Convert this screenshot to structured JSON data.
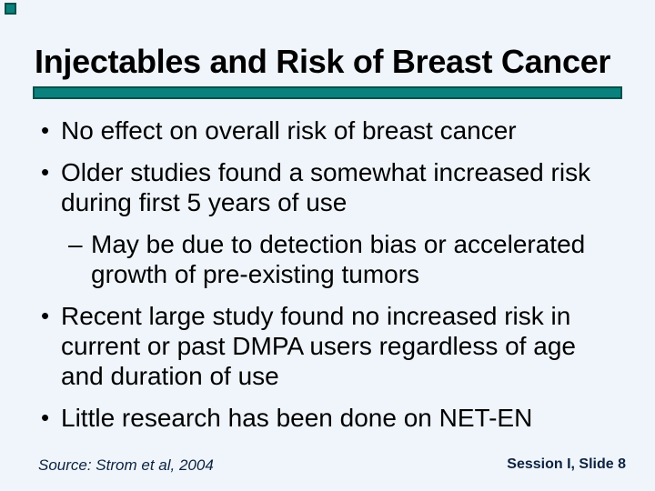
{
  "slide": {
    "title": "Injectables and Risk of Breast Cancer",
    "bullet_char": "•",
    "dash_char": "–",
    "bullets": [
      {
        "level": 1,
        "text": "No effect on overall risk of breast cancer"
      },
      {
        "level": 1,
        "text": "Older studies found a somewhat increased risk during first 5 years of use"
      },
      {
        "level": 2,
        "text": "May be due to detection bias or accelerated growth of pre-existing tumors"
      },
      {
        "level": 1,
        "text": "Recent large study found no increased risk in current or past DMPA users regardless of age and duration of use"
      },
      {
        "level": 1,
        "text": "Little research has been done on NET-EN"
      }
    ],
    "footer": {
      "source": "Source: Strom et al, 2004",
      "slide_ref": "Session I, Slide 8"
    },
    "colors": {
      "teal": "#0A817C",
      "teal_border": "#05504C",
      "background": "#EFF5FB",
      "text": "#000000",
      "footer": "#0D2240"
    }
  }
}
